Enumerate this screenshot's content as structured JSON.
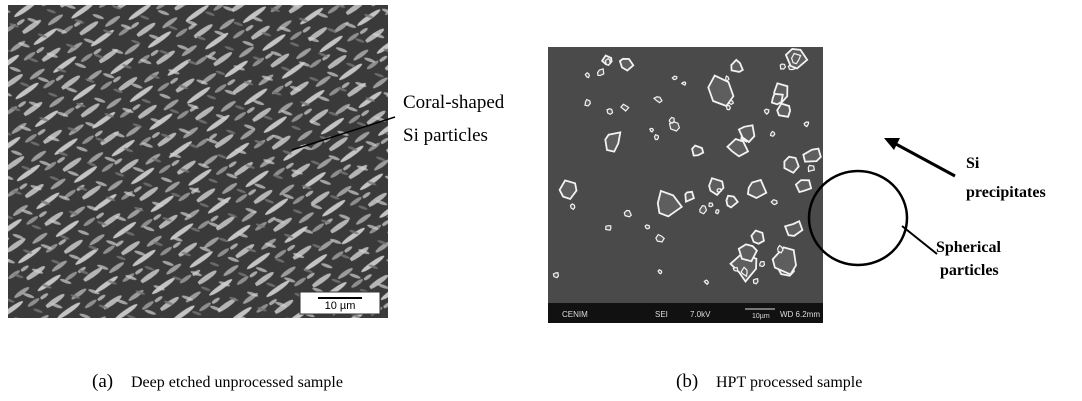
{
  "figure_a": {
    "label": "(a)",
    "caption": "Deep etched unprocessed sample",
    "annotation": [
      "Coral-shaped",
      "Si particles"
    ],
    "scale_bar": "10 µm"
  },
  "figure_b": {
    "label": "(b)",
    "caption": "HPT processed sample",
    "precipitates": [
      "Si",
      "precipitates"
    ],
    "spherical": [
      "Spherical",
      "particles"
    ],
    "info_bar": [
      "CENIM",
      "SEI",
      "7.0kV",
      "10µm",
      "WD 6.2mm"
    ]
  }
}
